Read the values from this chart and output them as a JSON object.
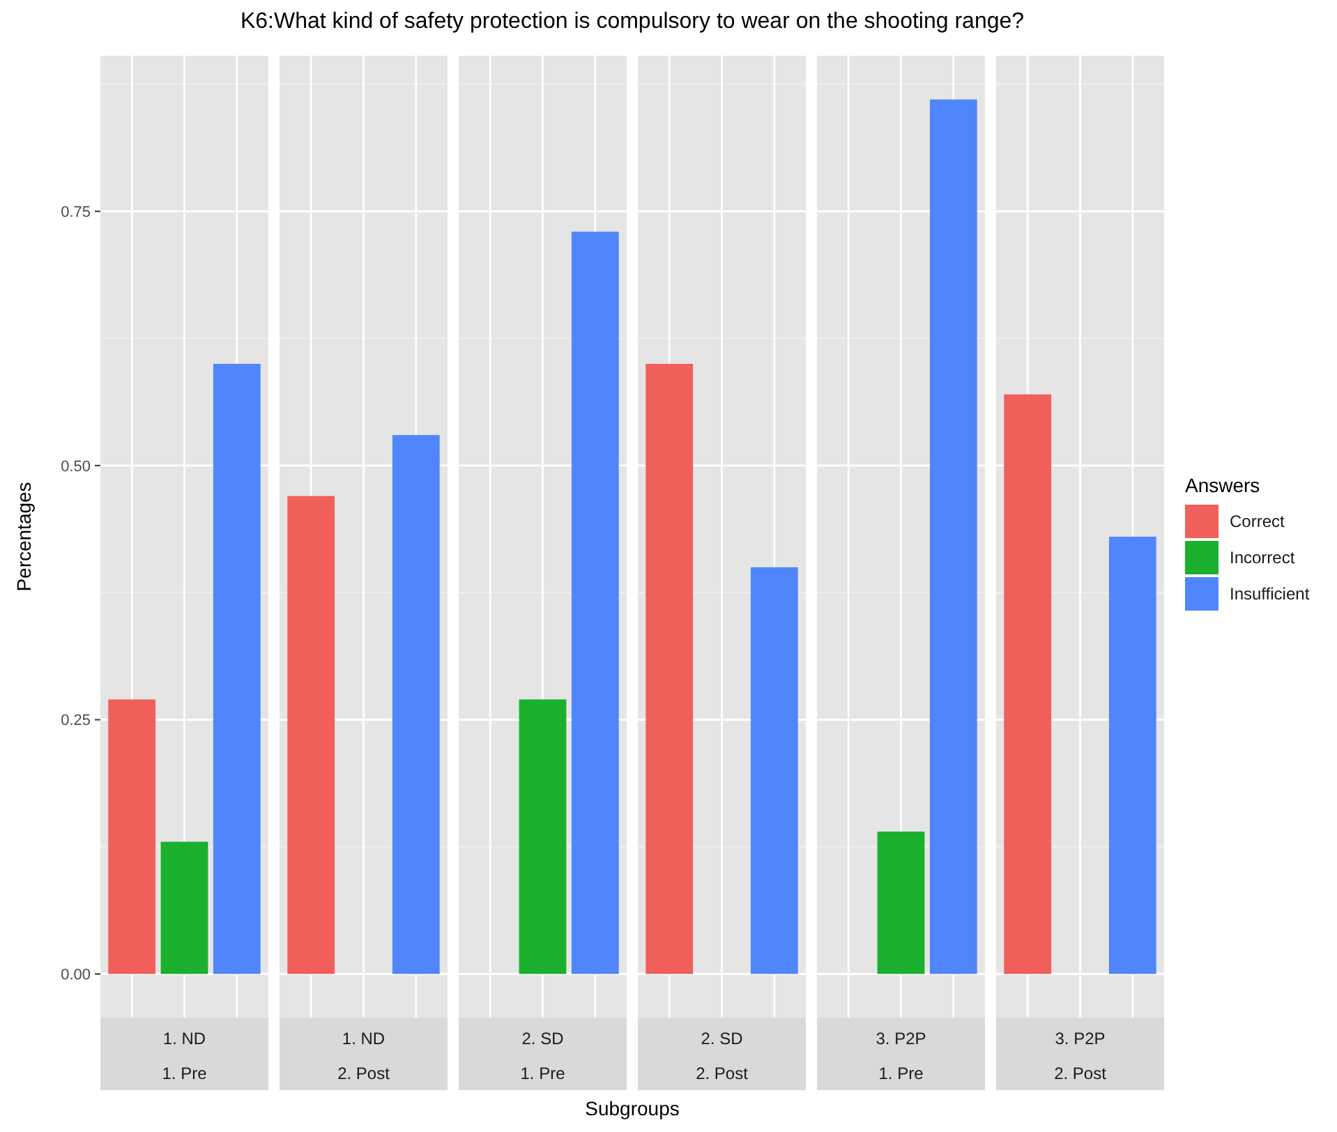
{
  "chart_data": {
    "type": "bar",
    "title": "K6:What kind of safety protection is compulsory to wear on the shooting range?",
    "xlabel": "Subgroups",
    "ylabel": "Percentages",
    "legend_title": "Answers",
    "categories": [
      "1. ND\n1. Pre",
      "1. ND\n2. Post",
      "2. SD\n1. Pre",
      "2. SD\n2. Post",
      "3. P2P\n1. Pre",
      "3. P2P\n2. Post"
    ],
    "series": [
      {
        "name": "Correct",
        "color": "#f15f5a",
        "values": [
          0.27,
          0.47,
          null,
          0.6,
          null,
          0.57
        ]
      },
      {
        "name": "Incorrect",
        "color": "#1bb02e",
        "values": [
          0.13,
          null,
          0.27,
          null,
          0.14,
          null
        ]
      },
      {
        "name": "Insufficient",
        "color": "#5086fd",
        "values": [
          0.6,
          0.53,
          0.73,
          0.4,
          0.86,
          0.43
        ]
      }
    ],
    "ylim": [
      -0.043,
      0.903
    ],
    "yticks": [
      {
        "value": 0,
        "label": "0.00"
      },
      {
        "value": 0.25,
        "label": "0.25"
      },
      {
        "value": 0.5,
        "label": "0.50"
      },
      {
        "value": 0.75,
        "label": "0.75"
      }
    ],
    "grid": true,
    "legend": "right"
  }
}
